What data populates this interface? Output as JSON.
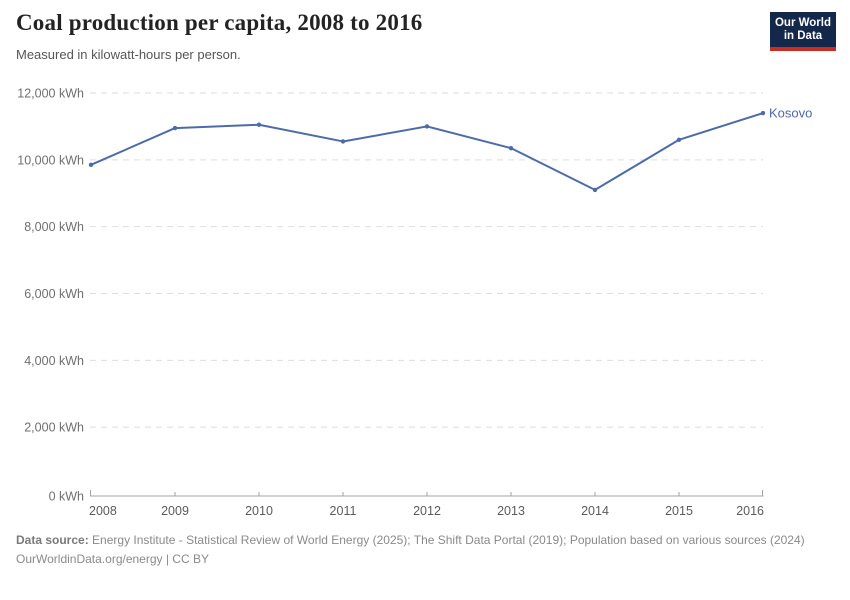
{
  "header": {
    "title": "Coal production per capita, 2008 to 2016",
    "subtitle": "Measured in kilowatt-hours per person."
  },
  "logo": {
    "line1": "Our World",
    "line2": "in Data",
    "bg_color": "#14284b",
    "accent_color": "#c82d23"
  },
  "chart_data": {
    "type": "line",
    "title": "Coal production per capita, 2008 to 2016",
    "xlabel": "",
    "ylabel": "",
    "unit": "kWh",
    "x": [
      "2008",
      "2009",
      "2010",
      "2011",
      "2012",
      "2013",
      "2014",
      "2015",
      "2016"
    ],
    "series": [
      {
        "name": "Kosovo",
        "color": "#4c6ba8",
        "values": [
          9850,
          10950,
          11050,
          10550,
          11000,
          10350,
          9100,
          10600,
          11400
        ]
      }
    ],
    "ylim": [
      0,
      12000
    ],
    "y_ticks": [
      {
        "value": 0,
        "label": "0 kWh"
      },
      {
        "value": 2000,
        "label": "2,000 kWh"
      },
      {
        "value": 4000,
        "label": "4,000 kWh"
      },
      {
        "value": 6000,
        "label": "6,000 kWh"
      },
      {
        "value": 8000,
        "label": "8,000 kWh"
      },
      {
        "value": 10000,
        "label": "10,000 kWh"
      },
      {
        "value": 12000,
        "label": "12,000 kWh"
      }
    ],
    "grid": "horizontal-dashed",
    "legend_position": "end-of-line-label",
    "colors": {
      "gridline": "#dedede",
      "axis": "#a3a3a3",
      "y_tick_label": "#6f6f6f",
      "x_tick_label": "#5b5b5b"
    }
  },
  "footer": {
    "source_label": "Data source:",
    "source_text": "Energy Institute - Statistical Review of World Energy (2025); The Shift Data Portal (2019); Population based on various sources (2024)",
    "link": "OurWorldinData.org/energy | CC BY"
  }
}
